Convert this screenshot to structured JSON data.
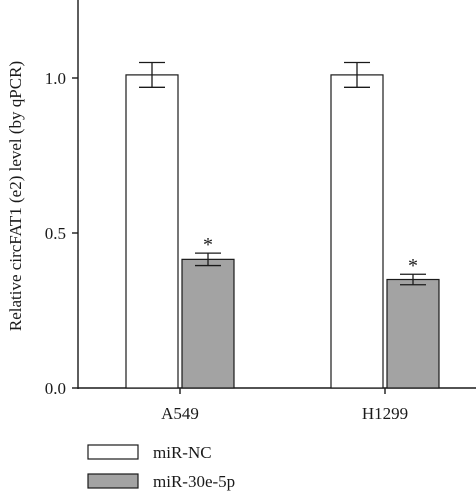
{
  "chart_data": {
    "type": "bar",
    "categories": [
      "A549",
      "H1299"
    ],
    "series": [
      {
        "name": "miR-NC",
        "values": [
          1.01,
          1.01
        ],
        "errors": [
          0.04,
          0.04
        ],
        "color": "#ffffff",
        "significance": [
          "",
          ""
        ]
      },
      {
        "name": "miR-30e-5p",
        "values": [
          0.415,
          0.35
        ],
        "errors": [
          0.02,
          0.017
        ],
        "color": "#a3a3a3",
        "significance": [
          "*",
          "*"
        ]
      }
    ],
    "title": "",
    "xlabel": "",
    "ylabel": "Relative circFAT1 (e2) level (by qPCR)",
    "ylim": [
      0,
      1.25
    ],
    "yticks": [
      {
        "value": 0.0,
        "label": "0.0"
      },
      {
        "value": 0.5,
        "label": "0.5"
      },
      {
        "value": 1.0,
        "label": "1.0"
      }
    ],
    "grid": false,
    "legend_position": "bottom-left",
    "axis_color": "#1a1a1a"
  }
}
